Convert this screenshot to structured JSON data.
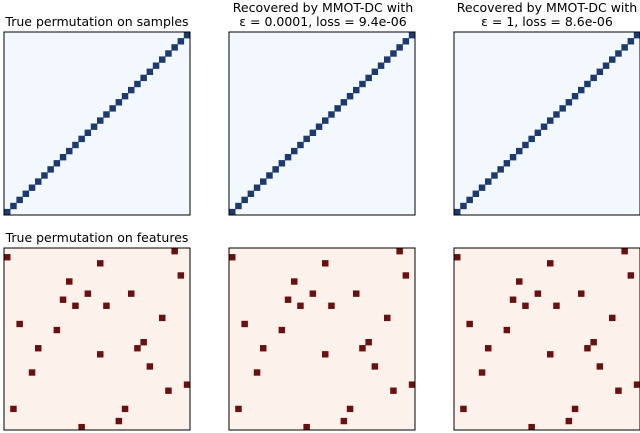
{
  "chart_data": [
    {
      "type": "heatmap",
      "title": "True permutation on samples",
      "size": 30,
      "cells": [
        [
          0,
          0
        ],
        [
          1,
          1
        ],
        [
          2,
          2
        ],
        [
          3,
          3
        ],
        [
          4,
          4
        ],
        [
          5,
          5
        ],
        [
          6,
          6
        ],
        [
          7,
          7
        ],
        [
          8,
          8
        ],
        [
          9,
          9
        ],
        [
          10,
          10
        ],
        [
          11,
          11
        ],
        [
          12,
          12
        ],
        [
          13,
          13
        ],
        [
          14,
          14
        ],
        [
          15,
          15
        ],
        [
          16,
          16
        ],
        [
          17,
          17
        ],
        [
          18,
          18
        ],
        [
          19,
          19
        ],
        [
          20,
          20
        ],
        [
          21,
          21
        ],
        [
          22,
          22
        ],
        [
          23,
          23
        ],
        [
          24,
          24
        ],
        [
          25,
          25
        ],
        [
          26,
          26
        ],
        [
          27,
          27
        ],
        [
          28,
          28
        ],
        [
          29,
          29
        ]
      ],
      "background_color": "#f3f8fe",
      "cell_color": "#1a3a70"
    },
    {
      "type": "heatmap",
      "title_lines": [
        "Recovered by MMOT-DC with",
        "ε = 0.0001, loss = 9.4e-06"
      ],
      "size": 30,
      "cells": [
        [
          0,
          0
        ],
        [
          1,
          1
        ],
        [
          2,
          2
        ],
        [
          3,
          3
        ],
        [
          4,
          4
        ],
        [
          5,
          5
        ],
        [
          6,
          6
        ],
        [
          7,
          7
        ],
        [
          8,
          8
        ],
        [
          9,
          9
        ],
        [
          10,
          10
        ],
        [
          11,
          11
        ],
        [
          12,
          12
        ],
        [
          13,
          13
        ],
        [
          14,
          14
        ],
        [
          15,
          15
        ],
        [
          16,
          16
        ],
        [
          17,
          17
        ],
        [
          18,
          18
        ],
        [
          19,
          19
        ],
        [
          20,
          20
        ],
        [
          21,
          21
        ],
        [
          22,
          22
        ],
        [
          23,
          23
        ],
        [
          24,
          24
        ],
        [
          25,
          25
        ],
        [
          26,
          26
        ],
        [
          27,
          27
        ],
        [
          28,
          28
        ],
        [
          29,
          29
        ]
      ],
      "background_color": "#f3f8fe",
      "cell_color": "#1a3a70"
    },
    {
      "type": "heatmap",
      "title_lines": [
        "Recovered by MMOT-DC with",
        "ε = 1, loss = 8.6e-06"
      ],
      "size": 30,
      "cells": [
        [
          0,
          0
        ],
        [
          1,
          1
        ],
        [
          2,
          2
        ],
        [
          3,
          3
        ],
        [
          4,
          4
        ],
        [
          5,
          5
        ],
        [
          6,
          6
        ],
        [
          7,
          7
        ],
        [
          8,
          8
        ],
        [
          9,
          9
        ],
        [
          10,
          10
        ],
        [
          11,
          11
        ],
        [
          12,
          12
        ],
        [
          13,
          13
        ],
        [
          14,
          14
        ],
        [
          15,
          15
        ],
        [
          16,
          16
        ],
        [
          17,
          17
        ],
        [
          18,
          18
        ],
        [
          19,
          19
        ],
        [
          20,
          20
        ],
        [
          21,
          21
        ],
        [
          22,
          22
        ],
        [
          23,
          23
        ],
        [
          24,
          24
        ],
        [
          25,
          25
        ],
        [
          26,
          26
        ],
        [
          27,
          27
        ],
        [
          28,
          28
        ],
        [
          29,
          29
        ]
      ],
      "background_color": "#f3f8fe",
      "cell_color": "#1a3a70"
    },
    {
      "type": "heatmap",
      "title": "True permutation on features",
      "size": 30,
      "cells": [
        [
          12,
          0
        ],
        [
          18,
          1
        ],
        [
          1,
          3
        ],
        [
          19,
          3
        ],
        [
          26,
          6
        ],
        [
          29,
          7
        ],
        [
          4,
          9
        ],
        [
          23,
          10
        ],
        [
          15,
          12
        ],
        [
          5,
          13
        ],
        [
          21,
          13
        ],
        [
          2,
          17
        ],
        [
          8,
          16
        ],
        [
          22,
          14
        ],
        [
          25,
          18
        ],
        [
          11,
          20
        ],
        [
          9,
          21
        ],
        [
          13,
          22
        ],
        [
          20,
          22
        ],
        [
          16,
          20
        ],
        [
          10,
          24
        ],
        [
          28,
          25
        ],
        [
          15,
          27
        ],
        [
          0,
          28
        ],
        [
          27,
          29
        ]
      ],
      "background_color": "#fdf1ec",
      "cell_color": "#6b0f0f"
    },
    {
      "type": "heatmap",
      "title": "",
      "size": 30,
      "cells": [
        [
          12,
          0
        ],
        [
          18,
          1
        ],
        [
          1,
          3
        ],
        [
          19,
          3
        ],
        [
          26,
          6
        ],
        [
          29,
          7
        ],
        [
          4,
          9
        ],
        [
          23,
          10
        ],
        [
          15,
          12
        ],
        [
          5,
          13
        ],
        [
          21,
          13
        ],
        [
          2,
          17
        ],
        [
          8,
          16
        ],
        [
          22,
          14
        ],
        [
          25,
          18
        ],
        [
          11,
          20
        ],
        [
          9,
          21
        ],
        [
          13,
          22
        ],
        [
          20,
          22
        ],
        [
          16,
          20
        ],
        [
          10,
          24
        ],
        [
          28,
          25
        ],
        [
          15,
          27
        ],
        [
          0,
          28
        ],
        [
          27,
          29
        ]
      ],
      "background_color": "#fdf1ec",
      "cell_color": "#6b0f0f"
    },
    {
      "type": "heatmap",
      "title": "",
      "size": 30,
      "cells": [
        [
          12,
          0
        ],
        [
          18,
          1
        ],
        [
          1,
          3
        ],
        [
          19,
          3
        ],
        [
          26,
          6
        ],
        [
          29,
          7
        ],
        [
          4,
          9
        ],
        [
          23,
          10
        ],
        [
          15,
          12
        ],
        [
          5,
          13
        ],
        [
          21,
          13
        ],
        [
          2,
          17
        ],
        [
          8,
          16
        ],
        [
          22,
          14
        ],
        [
          25,
          18
        ],
        [
          11,
          20
        ],
        [
          9,
          21
        ],
        [
          13,
          22
        ],
        [
          20,
          22
        ],
        [
          16,
          20
        ],
        [
          10,
          24
        ],
        [
          28,
          25
        ],
        [
          15,
          27
        ],
        [
          0,
          28
        ],
        [
          27,
          29
        ]
      ],
      "background_color": "#fdf1ec",
      "cell_color": "#6b0f0f"
    }
  ]
}
